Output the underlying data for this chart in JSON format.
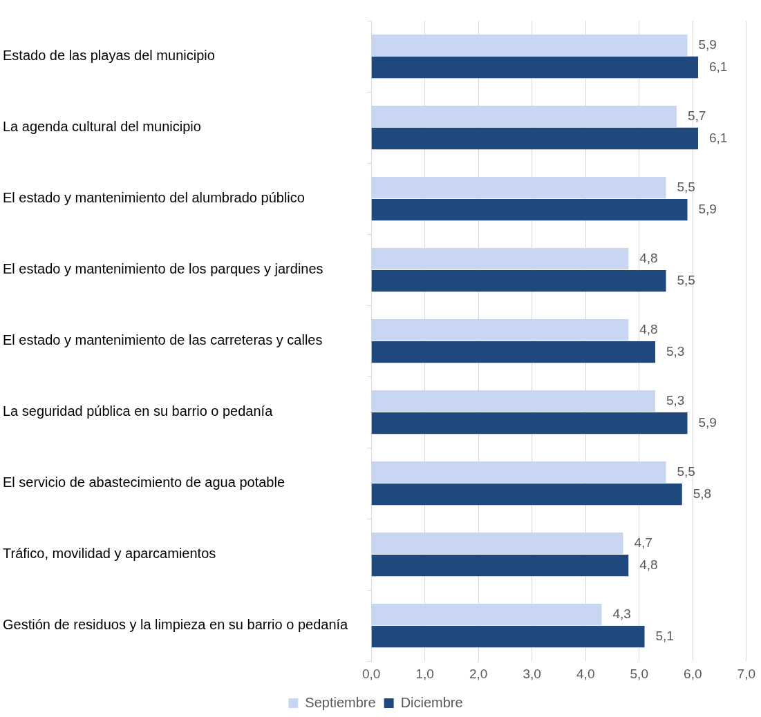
{
  "chart_data": {
    "type": "bar",
    "orientation": "horizontal",
    "categories": [
      "Estado de las playas del municipio",
      "La agenda cultural del municipio",
      "El estado y mantenimiento del alumbrado público",
      "El estado y mantenimiento de los parques y jardines",
      "El estado y mantenimiento de las carreteras y calles",
      "La seguridad pública en su barrio o pedanía",
      "El servicio de abastecimiento de agua potable",
      "Tráfico, movilidad y aparcamientos",
      "Gestión de residuos y la limpieza en su barrio o pedanía"
    ],
    "series": [
      {
        "name": "Septiembre",
        "color": "#c9d6f2",
        "values": [
          5.9,
          5.7,
          5.5,
          4.8,
          4.8,
          5.3,
          5.5,
          4.7,
          4.3
        ],
        "value_labels": [
          "5,9",
          "5,7",
          "5,5",
          "4,8",
          "4,8",
          "5,3",
          "5,5",
          "4,7",
          "4,3"
        ]
      },
      {
        "name": "Diciembre",
        "color": "#1f497d",
        "values": [
          6.1,
          6.1,
          5.9,
          5.5,
          5.3,
          5.9,
          5.8,
          4.8,
          5.1
        ],
        "value_labels": [
          "6,1",
          "6,1",
          "5,9",
          "5,5",
          "5,3",
          "5,9",
          "5,8",
          "4,8",
          "5,1"
        ]
      }
    ],
    "xlim": [
      0,
      7
    ],
    "xticks": [
      {
        "value": 0,
        "label": "0,0"
      },
      {
        "value": 1,
        "label": "1,0"
      },
      {
        "value": 2,
        "label": "2,0"
      },
      {
        "value": 3,
        "label": "3,0"
      },
      {
        "value": 4,
        "label": "4,0"
      },
      {
        "value": 5,
        "label": "5,0"
      },
      {
        "value": 6,
        "label": "6,0"
      },
      {
        "value": 7,
        "label": "7,0"
      }
    ],
    "grid": "x",
    "legend": "bottom"
  }
}
